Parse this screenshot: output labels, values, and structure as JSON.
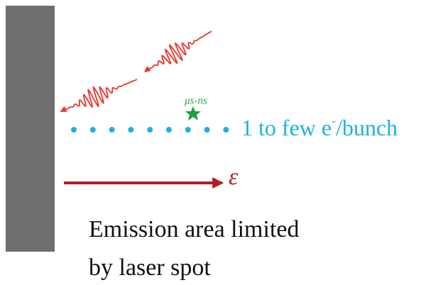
{
  "annotations": {
    "timing": "μs-ns",
    "beam_label": {
      "main": "1 to few e",
      "superscript": "-",
      "suffix": "/bunch"
    },
    "field": "ε"
  },
  "caption": {
    "lines": [
      "Emission area limited",
      "by laser spot"
    ]
  }
}
